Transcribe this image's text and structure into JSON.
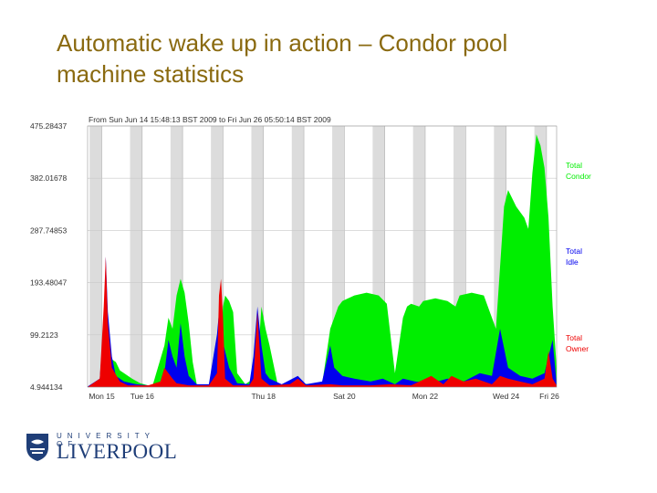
{
  "slide": {
    "title_line1": "Automatic wake up in action – Condor pool",
    "title_line2": "machine statistics"
  },
  "logo": {
    "top": "UNIVERSITY OF",
    "main": "LIVERPOOL"
  },
  "colors": {
    "total_condor": "#00ee00",
    "total_idle": "#0000ee",
    "total_owner": "#ee0000",
    "weekend_band": "#dcdcdc",
    "title": "#8a6a10",
    "logo": "#1f3e78"
  },
  "chart_data": {
    "type": "area",
    "title": "From Sun Jun 14 15:48:13 BST 2009 to Fri Jun 26 05:50:14 BST 2009",
    "x_unit": "day",
    "xlim": [
      0,
      11.6
    ],
    "ylim": [
      4.944134,
      475.28437
    ],
    "y_ticks": [
      "475.28437",
      "382.01678",
      "287.74853",
      "193.48047",
      "99.2123",
      "4.944134"
    ],
    "x_ticks": [
      {
        "pos": 0.35,
        "label": "Mon 15"
      },
      {
        "pos": 1.35,
        "label": "Tue 16"
      },
      {
        "pos": 4.35,
        "label": "Thu 18"
      },
      {
        "pos": 6.35,
        "label": "Sat 20"
      },
      {
        "pos": 8.35,
        "label": "Mon 22"
      },
      {
        "pos": 10.35,
        "label": "Wed 24"
      },
      {
        "pos": 12.35,
        "label": "Fri 26"
      }
    ],
    "grid": true,
    "legend_position": "right",
    "series": [
      {
        "name": "Total Condor",
        "points": [
          [
            0,
            6
          ],
          [
            0.3,
            10
          ],
          [
            0.5,
            60
          ],
          [
            0.7,
            50
          ],
          [
            0.8,
            35
          ],
          [
            0.9,
            30
          ],
          [
            1.1,
            20
          ],
          [
            1.3,
            12
          ],
          [
            1.6,
            6
          ],
          [
            1.9,
            80
          ],
          [
            2.0,
            130
          ],
          [
            2.1,
            110
          ],
          [
            2.2,
            170
          ],
          [
            2.3,
            200
          ],
          [
            2.4,
            175
          ],
          [
            2.5,
            120
          ],
          [
            2.6,
            50
          ],
          [
            2.7,
            10
          ],
          [
            3.0,
            8
          ],
          [
            3.2,
            60
          ],
          [
            3.3,
            90
          ],
          [
            3.35,
            150
          ],
          [
            3.4,
            170
          ],
          [
            3.5,
            160
          ],
          [
            3.6,
            140
          ],
          [
            3.7,
            30
          ],
          [
            3.9,
            10
          ],
          [
            4.1,
            20
          ],
          [
            4.2,
            40
          ],
          [
            4.3,
            150
          ],
          [
            4.4,
            110
          ],
          [
            4.5,
            80
          ],
          [
            4.7,
            10
          ],
          [
            5.0,
            8
          ],
          [
            5.2,
            12
          ],
          [
            5.5,
            10
          ],
          [
            5.8,
            10
          ],
          [
            6.0,
            110
          ],
          [
            6.2,
            150
          ],
          [
            6.3,
            160
          ],
          [
            6.6,
            170
          ],
          [
            6.9,
            175
          ],
          [
            7.2,
            170
          ],
          [
            7.4,
            155
          ],
          [
            7.6,
            30
          ],
          [
            7.8,
            130
          ],
          [
            7.9,
            150
          ],
          [
            8.0,
            155
          ],
          [
            8.2,
            150
          ],
          [
            8.3,
            160
          ],
          [
            8.6,
            165
          ],
          [
            8.9,
            160
          ],
          [
            9.1,
            150
          ],
          [
            9.2,
            170
          ],
          [
            9.5,
            175
          ],
          [
            9.8,
            170
          ],
          [
            10.1,
            110
          ],
          [
            10.3,
            330
          ],
          [
            10.4,
            360
          ],
          [
            10.5,
            345
          ],
          [
            10.6,
            330
          ],
          [
            10.8,
            310
          ],
          [
            10.9,
            290
          ],
          [
            11.0,
            390
          ],
          [
            11.1,
            460
          ],
          [
            11.2,
            440
          ],
          [
            11.3,
            400
          ],
          [
            11.4,
            310
          ],
          [
            11.5,
            150
          ],
          [
            11.6,
            40
          ]
        ]
      },
      {
        "name": "Total Idle",
        "points": [
          [
            0,
            6
          ],
          [
            0.3,
            20
          ],
          [
            0.4,
            120
          ],
          [
            0.45,
            240
          ],
          [
            0.5,
            140
          ],
          [
            0.6,
            60
          ],
          [
            0.7,
            25
          ],
          [
            0.9,
            15
          ],
          [
            1.2,
            10
          ],
          [
            1.5,
            8
          ],
          [
            1.8,
            10
          ],
          [
            1.9,
            30
          ],
          [
            2.0,
            90
          ],
          [
            2.1,
            60
          ],
          [
            2.2,
            40
          ],
          [
            2.3,
            120
          ],
          [
            2.4,
            60
          ],
          [
            2.5,
            25
          ],
          [
            2.7,
            10
          ],
          [
            3.0,
            10
          ],
          [
            3.2,
            100
          ],
          [
            3.25,
            140
          ],
          [
            3.3,
            100
          ],
          [
            3.5,
            40
          ],
          [
            3.7,
            12
          ],
          [
            4.0,
            10
          ],
          [
            4.1,
            60
          ],
          [
            4.2,
            150
          ],
          [
            4.3,
            80
          ],
          [
            4.4,
            30
          ],
          [
            4.5,
            20
          ],
          [
            4.8,
            10
          ],
          [
            5.2,
            25
          ],
          [
            5.4,
            10
          ],
          [
            5.8,
            15
          ],
          [
            6.0,
            80
          ],
          [
            6.1,
            40
          ],
          [
            6.3,
            25
          ],
          [
            6.6,
            20
          ],
          [
            7.0,
            15
          ],
          [
            7.3,
            20
          ],
          [
            7.6,
            10
          ],
          [
            7.8,
            20
          ],
          [
            8.1,
            15
          ],
          [
            8.5,
            12
          ],
          [
            8.9,
            20
          ],
          [
            9.3,
            15
          ],
          [
            9.7,
            30
          ],
          [
            10.0,
            25
          ],
          [
            10.2,
            110
          ],
          [
            10.4,
            40
          ],
          [
            10.7,
            25
          ],
          [
            11.0,
            20
          ],
          [
            11.3,
            30
          ],
          [
            11.5,
            90
          ],
          [
            11.6,
            10
          ]
        ]
      },
      {
        "name": "Total Owner",
        "points": [
          [
            0,
            5
          ],
          [
            0.3,
            20
          ],
          [
            0.4,
            150
          ],
          [
            0.45,
            240
          ],
          [
            0.5,
            120
          ],
          [
            0.6,
            40
          ],
          [
            0.8,
            15
          ],
          [
            1.0,
            8
          ],
          [
            1.5,
            8
          ],
          [
            1.8,
            15
          ],
          [
            1.9,
            40
          ],
          [
            2.0,
            30
          ],
          [
            2.1,
            20
          ],
          [
            2.2,
            12
          ],
          [
            2.5,
            8
          ],
          [
            3.0,
            8
          ],
          [
            3.2,
            30
          ],
          [
            3.25,
            170
          ],
          [
            3.3,
            200
          ],
          [
            3.35,
            130
          ],
          [
            3.4,
            20
          ],
          [
            3.6,
            8
          ],
          [
            4.0,
            8
          ],
          [
            4.1,
            20
          ],
          [
            4.2,
            140
          ],
          [
            4.3,
            20
          ],
          [
            4.5,
            8
          ],
          [
            5.0,
            10
          ],
          [
            5.2,
            20
          ],
          [
            5.4,
            8
          ],
          [
            6.0,
            10
          ],
          [
            6.3,
            8
          ],
          [
            7.0,
            8
          ],
          [
            7.5,
            10
          ],
          [
            8.0,
            8
          ],
          [
            8.5,
            25
          ],
          [
            8.8,
            10
          ],
          [
            9.0,
            25
          ],
          [
            9.3,
            15
          ],
          [
            9.6,
            20
          ],
          [
            10.0,
            10
          ],
          [
            10.2,
            25
          ],
          [
            10.4,
            20
          ],
          [
            10.7,
            15
          ],
          [
            11.0,
            10
          ],
          [
            11.3,
            20
          ],
          [
            11.4,
            70
          ],
          [
            11.5,
            20
          ],
          [
            11.6,
            8
          ]
        ]
      }
    ]
  }
}
